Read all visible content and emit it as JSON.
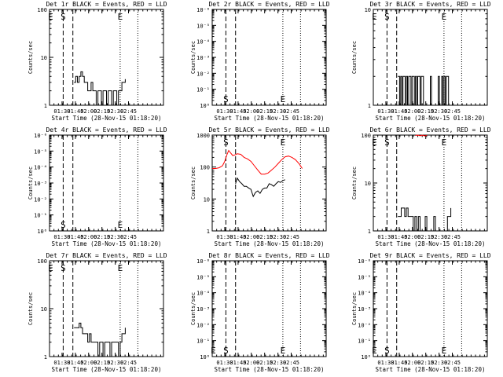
{
  "chart_data": [
    {
      "type": "line",
      "title": "Det 1r BLACK = Events, RED = LLD",
      "ylabel": "Counts/sec",
      "xlabel": "Start Time (28-Nov-15 01:18:20)",
      "yscale": "log",
      "ylim": [
        1,
        100
      ],
      "yticks": [
        "1",
        "10",
        "100"
      ],
      "xlim": [
        0,
        100
      ],
      "xticks": [
        "01:30",
        "01:45",
        "02:00",
        "02:15",
        "02:30",
        "02:45"
      ],
      "xtick_values": [
        11,
        22.7,
        34.3,
        46,
        57.7,
        69.3
      ],
      "markers": [
        {
          "label": "E",
          "x": 1,
          "pos": "top"
        },
        {
          "label": "S",
          "x": 12,
          "pos": "top"
        },
        {
          "label": "E",
          "x": 62,
          "pos": "top"
        }
      ],
      "dashed_lines": [
        12,
        20.5
      ],
      "dotted_lines": [
        62,
        77.5
      ],
      "series": [
        {
          "color": "#000000",
          "steps": true,
          "x": [
            21.5,
            23,
            24.5,
            26,
            27.5,
            29,
            30.5,
            32,
            33.5,
            35,
            36.5,
            38,
            39.5,
            41,
            42.5,
            44,
            45.5,
            47,
            48.5,
            50,
            51.5,
            53,
            54.5,
            56,
            57.5,
            59,
            60.5,
            62,
            63.5,
            65,
            66.5
          ],
          "y": [
            3,
            4,
            3,
            4,
            5,
            4,
            3,
            3,
            2,
            2,
            3,
            2,
            2,
            1,
            2,
            2,
            1,
            2,
            2,
            1,
            2,
            2,
            1,
            2,
            2,
            1,
            2,
            2,
            3,
            3,
            3.5
          ]
        }
      ]
    },
    {
      "type": "line",
      "title": "Det 2r BLACK = Events, RED = LLD",
      "ylabel": "Counts/sec",
      "xlabel": "Start Time (28-Nov-15 01:18:20)",
      "yscale": "log",
      "ylim": [
        1,
        1000000
      ],
      "yticks": [
        "10⁰",
        "10⁻¹",
        "10⁻²",
        "10⁻³",
        "10⁻⁴",
        "10⁻⁵",
        "10⁻⁶"
      ],
      "xlim": [
        0,
        100
      ],
      "xticks": [
        "01:30",
        "01:45",
        "02:00",
        "02:15",
        "02:30",
        "02:45"
      ],
      "xtick_values": [
        11,
        22.7,
        34.3,
        46,
        57.7,
        69.3
      ],
      "markers": [
        {
          "label": "S",
          "x": 12,
          "pos": "bottom"
        },
        {
          "label": "E",
          "x": 62,
          "pos": "bottom"
        }
      ],
      "dashed_lines": [
        12,
        20.5
      ],
      "dotted_lines": [
        62,
        77.5
      ],
      "series": []
    },
    {
      "type": "line",
      "title": "Det 3r BLACK = Events, RED = LLD",
      "ylabel": "Counts/sec",
      "xlabel": "Start Time (28-Nov-15 01:18:20)",
      "yscale": "log",
      "ylim": [
        1,
        10
      ],
      "yticks": [
        "1",
        "10"
      ],
      "xlim": [
        0,
        100
      ],
      "xticks": [
        "01:30",
        "01:45",
        "02:00",
        "02:15",
        "02:30",
        "02:45"
      ],
      "xtick_values": [
        11,
        22.7,
        34.3,
        46,
        57.7,
        69.3
      ],
      "markers": [
        {
          "label": "E",
          "x": 1,
          "pos": "top"
        },
        {
          "label": "S",
          "x": 12,
          "pos": "top"
        },
        {
          "label": "E",
          "x": 62,
          "pos": "top"
        }
      ],
      "dashed_lines": [
        12,
        20.5
      ],
      "dotted_lines": [
        62,
        77.5
      ],
      "series": [
        {
          "color": "#000000",
          "steps": true,
          "x": [
            21.5,
            23,
            24,
            25,
            26,
            27,
            28,
            29,
            30,
            31,
            32,
            33,
            34,
            35,
            36,
            37,
            38,
            39,
            40,
            41,
            42,
            43,
            44,
            45,
            46,
            47,
            48,
            49,
            50,
            51,
            52,
            53,
            54,
            55,
            56,
            57,
            58,
            59,
            60,
            61,
            62,
            63,
            64,
            65,
            66,
            67,
            68,
            69,
            70,
            71,
            72,
            73
          ],
          "y": [
            2,
            1,
            2,
            1,
            2,
            2,
            1,
            2,
            1,
            2,
            2,
            1,
            2,
            2,
            1,
            2,
            1,
            2,
            2,
            1,
            2,
            2,
            1,
            1,
            1,
            1,
            1,
            1,
            2,
            1,
            1,
            1,
            1,
            1,
            1,
            2,
            1,
            1,
            2,
            1,
            2,
            1,
            2,
            2,
            1,
            1,
            1,
            1,
            1,
            1,
            1,
            1
          ]
        }
      ]
    },
    {
      "type": "line",
      "title": "Det 4r BLACK = Events, RED = LLD",
      "ylabel": "Counts/sec",
      "xlabel": "Start Time (28-Nov-15 01:18:20)",
      "yscale": "log",
      "ylim": [
        1,
        1000000
      ],
      "yticks": [
        "10⁰",
        "10⁻¹",
        "10⁻²",
        "10⁻³",
        "10⁻⁴",
        "10⁻⁵",
        "10⁻⁶"
      ],
      "xlim": [
        0,
        100
      ],
      "xticks": [
        "01:30",
        "01:45",
        "02:00",
        "02:15",
        "02:30",
        "02:45"
      ],
      "xtick_values": [
        11,
        22.7,
        34.3,
        46,
        57.7,
        69.3
      ],
      "markers": [
        {
          "label": "S",
          "x": 12,
          "pos": "bottom"
        },
        {
          "label": "E",
          "x": 62,
          "pos": "bottom"
        }
      ],
      "dashed_lines": [
        12,
        20.5
      ],
      "dotted_lines": [
        62,
        77.5
      ],
      "series": []
    },
    {
      "type": "line",
      "title": "Det 5r BLACK = Events, RED = LLD",
      "ylabel": "Counts/sec",
      "xlabel": "Start Time (28-Nov-15 01:18:20)",
      "yscale": "log",
      "ylim": [
        1,
        1000
      ],
      "yticks": [
        "1",
        "10",
        "100",
        "1000"
      ],
      "xlim": [
        0,
        100
      ],
      "xticks": [
        "01:30",
        "01:45",
        "02:00",
        "02:15",
        "02:30",
        "02:45"
      ],
      "xtick_values": [
        11,
        22.7,
        34.3,
        46,
        57.7,
        69.3
      ],
      "markers": [
        {
          "label": "S",
          "x": 12,
          "pos": "top"
        },
        {
          "label": "E",
          "x": 62,
          "pos": "top"
        }
      ],
      "dashed_lines": [
        12,
        20.5
      ],
      "dotted_lines": [
        62,
        77.5
      ],
      "series": [
        {
          "color": "#ff0000",
          "steps": false,
          "x": [
            0,
            3,
            6,
            9,
            11,
            13,
            14.5,
            16,
            18,
            20,
            22,
            25,
            28,
            31,
            34,
            37,
            40,
            43,
            46,
            49,
            52,
            55,
            58,
            61,
            64,
            67,
            70,
            73,
            76,
            79
          ],
          "y": [
            90,
            90,
            95,
            110,
            150,
            250,
            330,
            280,
            230,
            240,
            260,
            250,
            200,
            180,
            150,
            110,
            80,
            60,
            60,
            65,
            80,
            100,
            130,
            170,
            210,
            220,
            200,
            170,
            130,
            90
          ]
        },
        {
          "color": "#000000",
          "steps": false,
          "x": [
            20.5,
            22,
            24,
            26,
            28,
            30,
            32,
            34,
            36,
            38,
            40,
            42,
            44,
            46,
            48,
            50,
            52,
            54,
            56,
            58,
            60,
            62,
            64
          ],
          "y": [
            30,
            45,
            35,
            30,
            25,
            25,
            22,
            20,
            12,
            16,
            18,
            15,
            20,
            22,
            22,
            30,
            28,
            25,
            30,
            35,
            33,
            38,
            40
          ]
        }
      ]
    },
    {
      "type": "line",
      "title": "Det 6r BLACK = Events, RED = LLD",
      "ylabel": "Counts/sec",
      "xlabel": "Start Time (28-Nov-15 01:18:20)",
      "yscale": "log",
      "ylim": [
        1,
        100
      ],
      "yticks": [
        "1",
        "10",
        "100"
      ],
      "xlim": [
        0,
        100
      ],
      "xticks": [
        "01:30",
        "01:45",
        "02:00",
        "02:15",
        "02:30",
        "02:45"
      ],
      "xtick_values": [
        11,
        22.7,
        34.3,
        46,
        57.7,
        69.3
      ],
      "markers": [
        {
          "label": "E",
          "x": 1,
          "pos": "top"
        },
        {
          "label": "S",
          "x": 12,
          "pos": "top"
        },
        {
          "label": "E",
          "x": 62,
          "pos": "top"
        }
      ],
      "dashed_lines": [
        12,
        20.5
      ],
      "dotted_lines": [
        62,
        77.5
      ],
      "series": [
        {
          "color": "#ff0000",
          "steps": false,
          "x": [
            37,
            39,
            41,
            43,
            45,
            47
          ],
          "y": [
            98,
            100,
            97,
            100,
            96,
            99
          ]
        },
        {
          "color": "#000000",
          "steps": true,
          "x": [
            21.5,
            23,
            24.5,
            26,
            27.5,
            29,
            30.5,
            32,
            33.5,
            35,
            36.5,
            38,
            39.5,
            41,
            42.5,
            44,
            45.5,
            47,
            48.5,
            50,
            51.5,
            53,
            54.5,
            56,
            57.5,
            59,
            60.5,
            62,
            63.5,
            65,
            66.5,
            68
          ],
          "y": [
            2,
            2,
            3,
            3,
            2,
            3,
            2,
            2,
            2,
            1,
            2,
            1,
            2,
            1,
            1,
            1,
            2,
            1,
            1,
            1,
            1,
            2,
            1,
            1,
            1,
            1,
            1,
            1,
            1,
            2,
            2,
            3
          ]
        }
      ]
    },
    {
      "type": "line",
      "title": "Det 7r BLACK = Events, RED = LLD",
      "ylabel": "Counts/sec",
      "xlabel": "Start Time (28-Nov-15 01:18:20)",
      "yscale": "log",
      "ylim": [
        1,
        100
      ],
      "yticks": [
        "1",
        "10",
        "100"
      ],
      "xlim": [
        0,
        100
      ],
      "xticks": [
        "01:30",
        "01:45",
        "02:00",
        "02:15",
        "02:30",
        "02:45"
      ],
      "xtick_values": [
        11,
        22.7,
        34.3,
        46,
        57.7,
        69.3
      ],
      "markers": [
        {
          "label": "E",
          "x": 1,
          "pos": "top"
        },
        {
          "label": "S",
          "x": 12,
          "pos": "top"
        },
        {
          "label": "E",
          "x": 62,
          "pos": "top"
        }
      ],
      "dashed_lines": [
        12,
        20.5
      ],
      "dotted_lines": [
        62,
        77.5
      ],
      "series": [
        {
          "color": "#000000",
          "steps": true,
          "x": [
            21.5,
            23,
            24.5,
            26,
            27.5,
            29,
            30.5,
            32,
            33.5,
            35,
            36.5,
            38,
            39.5,
            41,
            42.5,
            44,
            45.5,
            47,
            48.5,
            50,
            51.5,
            53,
            54.5,
            56,
            57.5,
            59,
            60.5,
            62,
            63.5,
            65,
            66.5
          ],
          "y": [
            4,
            4,
            4,
            5,
            4,
            3,
            3,
            3,
            2,
            3,
            2,
            2,
            2,
            2,
            1,
            2,
            2,
            1,
            2,
            2,
            2,
            1,
            2,
            2,
            2,
            2,
            1,
            2,
            3,
            3,
            4
          ]
        }
      ]
    },
    {
      "type": "line",
      "title": "Det 8r BLACK = Events, RED = LLD",
      "ylabel": "Counts/sec",
      "xlabel": "Start Time (28-Nov-15 01:18:20)",
      "yscale": "log",
      "ylim": [
        1,
        1000000
      ],
      "yticks": [
        "10⁰",
        "10⁻¹",
        "10⁻²",
        "10⁻³",
        "10⁻⁴",
        "10⁻⁵",
        "10⁻⁶"
      ],
      "xlim": [
        0,
        100
      ],
      "xticks": [
        "01:30",
        "01:45",
        "02:00",
        "02:15",
        "02:30",
        "02:45"
      ],
      "xtick_values": [
        11,
        22.7,
        34.3,
        46,
        57.7,
        69.3
      ],
      "markers": [
        {
          "label": "E",
          "x": 1,
          "pos": "bottom"
        },
        {
          "label": "S",
          "x": 12,
          "pos": "bottom"
        },
        {
          "label": "E",
          "x": 62,
          "pos": "bottom"
        }
      ],
      "dashed_lines": [
        12,
        20.5
      ],
      "dotted_lines": [
        62,
        77.5
      ],
      "series": []
    },
    {
      "type": "line",
      "title": "Det 9r BLACK = Events, RED = LLD",
      "ylabel": "Counts/sec",
      "xlabel": "Start Time (28-Nov-15 01:18:20)",
      "yscale": "log",
      "ylim": [
        1,
        1000000
      ],
      "yticks": [
        "10⁰",
        "10⁻¹",
        "10⁻²",
        "10⁻³",
        "10⁻⁴",
        "10⁻⁵",
        "10⁻⁶"
      ],
      "xlim": [
        0,
        100
      ],
      "xticks": [
        "01:30",
        "01:45",
        "02:00",
        "02:15",
        "02:30",
        "02:45"
      ],
      "xtick_values": [
        11,
        22.7,
        34.3,
        46,
        57.7,
        69.3
      ],
      "markers": [
        {
          "label": "E",
          "x": 1,
          "pos": "bottom"
        },
        {
          "label": "S",
          "x": 12,
          "pos": "bottom"
        },
        {
          "label": "E",
          "x": 62,
          "pos": "bottom"
        }
      ],
      "dashed_lines": [
        12,
        20.5
      ],
      "dotted_lines": [
        62,
        77.5
      ],
      "series": []
    }
  ]
}
